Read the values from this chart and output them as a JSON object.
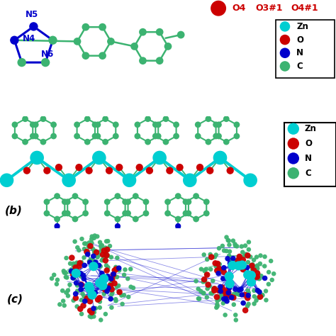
{
  "bg_color": "#ffffff",
  "zn_color": "#00CED1",
  "o_color": "#CC0000",
  "n_color": "#0000CC",
  "c_color": "#3CB371",
  "bond_color_zn": "#00CED1",
  "panel_b_label": "(b)",
  "panel_c_label": "(c)",
  "panel_a_n5": "N5",
  "panel_a_n4": "N4",
  "panel_a_n6": "N6",
  "o4_label": "O4",
  "o3_label": "O3#1",
  "o4_label2": "O4#1",
  "legend_labels": [
    "Zn",
    "O",
    "N",
    "C"
  ]
}
